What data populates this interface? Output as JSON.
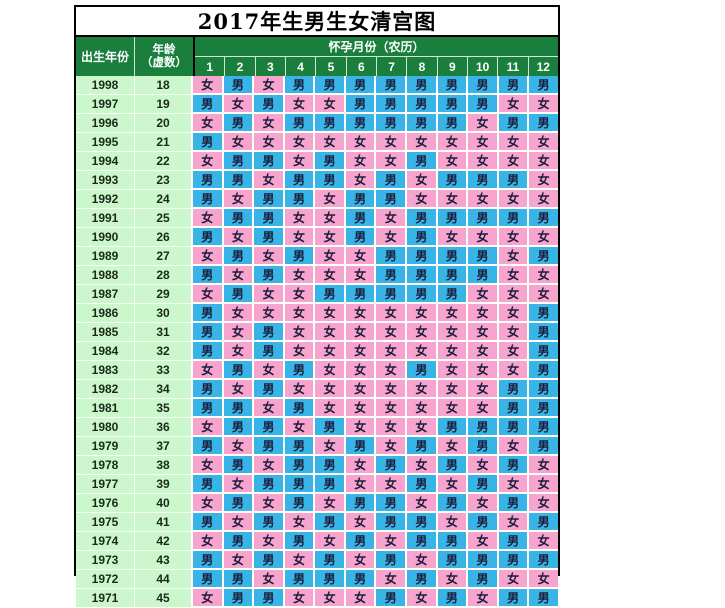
{
  "colors": {
    "boy_cell": "#38b4e6",
    "girl_cell": "#f7a4ce",
    "header_green": "#1a7f3c",
    "year_column_green": "#ccf6cc",
    "grid_white": "#ffffff",
    "border_black": "#000000",
    "cell_text": "#1c1c3a",
    "header_text": "#ffffff"
  },
  "chart_data": {
    "type": "table",
    "title": "2017年生男生女清宫图",
    "header": {
      "birth_year_label": "出生年份",
      "age_label_line1": "年龄",
      "age_label_line2": "（虚数）",
      "month_group_label": "怀孕月份（农历）",
      "month_columns": [
        "1",
        "2",
        "3",
        "4",
        "5",
        "6",
        "7",
        "8",
        "9",
        "10",
        "11",
        "12"
      ]
    },
    "gender_values": {
      "boy": "男",
      "girl": "女"
    },
    "rows": [
      {
        "year": "1998",
        "age": "18",
        "months": [
          "女",
          "男",
          "女",
          "男",
          "男",
          "男",
          "男",
          "男",
          "男",
          "男",
          "男",
          "男"
        ]
      },
      {
        "year": "1997",
        "age": "19",
        "months": [
          "男",
          "女",
          "男",
          "女",
          "女",
          "男",
          "男",
          "男",
          "男",
          "男",
          "女",
          "女"
        ]
      },
      {
        "year": "1996",
        "age": "20",
        "months": [
          "女",
          "男",
          "女",
          "男",
          "男",
          "男",
          "男",
          "男",
          "男",
          "女",
          "男",
          "男"
        ]
      },
      {
        "year": "1995",
        "age": "21",
        "months": [
          "男",
          "女",
          "女",
          "女",
          "女",
          "女",
          "女",
          "女",
          "女",
          "女",
          "女",
          "女"
        ]
      },
      {
        "year": "1994",
        "age": "22",
        "months": [
          "女",
          "男",
          "男",
          "女",
          "男",
          "女",
          "女",
          "男",
          "女",
          "女",
          "女",
          "女"
        ]
      },
      {
        "year": "1993",
        "age": "23",
        "months": [
          "男",
          "男",
          "女",
          "男",
          "男",
          "女",
          "男",
          "女",
          "男",
          "男",
          "男",
          "女"
        ]
      },
      {
        "year": "1992",
        "age": "24",
        "months": [
          "男",
          "女",
          "男",
          "男",
          "女",
          "男",
          "男",
          "女",
          "女",
          "女",
          "女",
          "女"
        ]
      },
      {
        "year": "1991",
        "age": "25",
        "months": [
          "女",
          "男",
          "男",
          "女",
          "女",
          "男",
          "女",
          "男",
          "男",
          "男",
          "男",
          "男"
        ]
      },
      {
        "year": "1990",
        "age": "26",
        "months": [
          "男",
          "女",
          "男",
          "女",
          "女",
          "男",
          "女",
          "男",
          "女",
          "女",
          "女",
          "女"
        ]
      },
      {
        "year": "1989",
        "age": "27",
        "months": [
          "女",
          "男",
          "女",
          "男",
          "女",
          "女",
          "男",
          "男",
          "男",
          "男",
          "女",
          "男"
        ]
      },
      {
        "year": "1988",
        "age": "28",
        "months": [
          "男",
          "女",
          "男",
          "女",
          "女",
          "女",
          "男",
          "男",
          "男",
          "男",
          "女",
          "女"
        ]
      },
      {
        "year": "1987",
        "age": "29",
        "months": [
          "女",
          "男",
          "女",
          "女",
          "男",
          "男",
          "男",
          "男",
          "男",
          "女",
          "女",
          "女"
        ]
      },
      {
        "year": "1986",
        "age": "30",
        "months": [
          "男",
          "女",
          "女",
          "女",
          "女",
          "女",
          "女",
          "女",
          "女",
          "女",
          "女",
          "男"
        ]
      },
      {
        "year": "1985",
        "age": "31",
        "months": [
          "男",
          "女",
          "男",
          "女",
          "女",
          "女",
          "女",
          "女",
          "女",
          "女",
          "女",
          "男"
        ]
      },
      {
        "year": "1984",
        "age": "32",
        "months": [
          "男",
          "女",
          "男",
          "女",
          "女",
          "女",
          "女",
          "女",
          "女",
          "女",
          "女",
          "男"
        ]
      },
      {
        "year": "1983",
        "age": "33",
        "months": [
          "女",
          "男",
          "女",
          "男",
          "女",
          "女",
          "女",
          "男",
          "女",
          "女",
          "女",
          "男"
        ]
      },
      {
        "year": "1982",
        "age": "34",
        "months": [
          "男",
          "女",
          "男",
          "女",
          "女",
          "女",
          "女",
          "女",
          "女",
          "女",
          "男",
          "男"
        ]
      },
      {
        "year": "1981",
        "age": "35",
        "months": [
          "男",
          "男",
          "女",
          "男",
          "女",
          "女",
          "女",
          "女",
          "女",
          "女",
          "男",
          "男"
        ]
      },
      {
        "year": "1980",
        "age": "36",
        "months": [
          "女",
          "男",
          "男",
          "女",
          "男",
          "女",
          "女",
          "女",
          "男",
          "男",
          "男",
          "男"
        ]
      },
      {
        "year": "1979",
        "age": "37",
        "months": [
          "男",
          "女",
          "男",
          "男",
          "女",
          "男",
          "女",
          "男",
          "女",
          "男",
          "女",
          "男"
        ]
      },
      {
        "year": "1978",
        "age": "38",
        "months": [
          "女",
          "男",
          "女",
          "男",
          "男",
          "女",
          "男",
          "女",
          "男",
          "女",
          "男",
          "女"
        ]
      },
      {
        "year": "1977",
        "age": "39",
        "months": [
          "男",
          "女",
          "男",
          "男",
          "男",
          "女",
          "女",
          "男",
          "女",
          "男",
          "女",
          "女"
        ]
      },
      {
        "year": "1976",
        "age": "40",
        "months": [
          "女",
          "男",
          "女",
          "男",
          "女",
          "男",
          "男",
          "女",
          "男",
          "女",
          "男",
          "女"
        ]
      },
      {
        "year": "1975",
        "age": "41",
        "months": [
          "男",
          "女",
          "男",
          "女",
          "男",
          "女",
          "男",
          "男",
          "女",
          "男",
          "女",
          "男"
        ]
      },
      {
        "year": "1974",
        "age": "42",
        "months": [
          "女",
          "男",
          "女",
          "男",
          "女",
          "男",
          "女",
          "男",
          "男",
          "女",
          "男",
          "女"
        ]
      },
      {
        "year": "1973",
        "age": "43",
        "months": [
          "男",
          "女",
          "男",
          "女",
          "男",
          "女",
          "男",
          "女",
          "男",
          "男",
          "男",
          "男"
        ]
      },
      {
        "year": "1972",
        "age": "44",
        "months": [
          "男",
          "男",
          "女",
          "男",
          "男",
          "男",
          "女",
          "男",
          "女",
          "男",
          "女",
          "女"
        ]
      },
      {
        "year": "1971",
        "age": "45",
        "months": [
          "女",
          "男",
          "男",
          "女",
          "女",
          "女",
          "男",
          "女",
          "男",
          "女",
          "男",
          "男"
        ]
      }
    ]
  }
}
